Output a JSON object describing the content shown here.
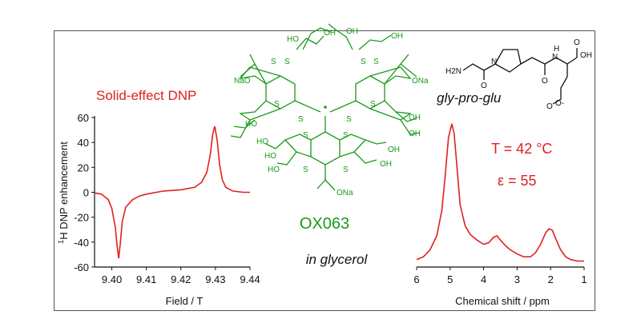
{
  "colors": {
    "spectrum": "#e02020",
    "molecule": "#1a9a1a",
    "peptide": "#111111"
  },
  "annotations": {
    "solid_effect": "Solid-effect DNP",
    "radical_name": "OX063",
    "solvent": "in glycerol",
    "peptide": "gly-pro-glu",
    "temperature": "T = 42 °C",
    "enhancement": "ε = 55",
    "labels_ox063": [
      "HO",
      "OH",
      "OH",
      "OH",
      "NaO",
      "ONa",
      "S",
      "HO",
      "OH",
      "OH",
      "ONa"
    ],
    "labels_peptide": [
      "H2N",
      "N",
      "H",
      "OH",
      "O",
      "O",
      "O",
      "O-"
    ]
  },
  "chart_data": [
    {
      "type": "line",
      "title": "",
      "xlabel": "Field / T",
      "ylabel": "1H DNP enhancement",
      "ylabel_sup": "1",
      "ylabel_rest": "H DNP enhancement",
      "xlim": [
        9.395,
        9.44
      ],
      "ylim": [
        -60,
        60
      ],
      "xticks": [
        9.4,
        9.41,
        9.42,
        9.43,
        9.44
      ],
      "xtick_labels": [
        "9.40",
        "9.41",
        "9.42",
        "9.43",
        "9.44"
      ],
      "yticks": [
        60,
        40,
        20,
        0,
        -20,
        -40,
        -60
      ],
      "ytick_labels": [
        "60",
        "40",
        "20",
        "0",
        "-20",
        "-40",
        "-60"
      ],
      "grid": false,
      "series": [
        {
          "x": [
            9.395,
            9.397,
            9.399,
            9.4,
            9.401,
            9.4015,
            9.402,
            9.4025,
            9.403,
            9.404,
            9.406,
            9.408,
            9.41,
            9.415,
            9.42,
            9.424,
            9.426,
            9.4275,
            9.4285,
            9.4292,
            9.4298,
            9.4305,
            9.4312,
            9.432,
            9.433,
            9.435,
            9.438,
            9.44
          ],
          "y": [
            -0.5,
            -1.5,
            -6,
            -13,
            -28,
            -42,
            -53,
            -40,
            -24,
            -12,
            -6,
            -3,
            -1.5,
            1,
            2,
            4,
            8,
            16,
            30,
            46,
            53,
            42,
            22,
            10,
            4,
            1,
            0,
            0
          ]
        }
      ]
    },
    {
      "type": "line",
      "title": "",
      "xlabel": "Chemical shift / ppm",
      "ylabel": "",
      "xlim": [
        6,
        1
      ],
      "x_reversed": true,
      "xticks": [
        6,
        5,
        4,
        3,
        2,
        1
      ],
      "xtick_labels": [
        "6",
        "5",
        "4",
        "3",
        "2",
        "1"
      ],
      "ylim": [
        0,
        1.05
      ],
      "grid": false,
      "series": [
        {
          "x": [
            6.0,
            5.8,
            5.6,
            5.4,
            5.25,
            5.15,
            5.05,
            4.95,
            4.88,
            4.8,
            4.7,
            4.55,
            4.4,
            4.2,
            4.0,
            3.85,
            3.7,
            3.6,
            3.5,
            3.35,
            3.2,
            3.0,
            2.8,
            2.6,
            2.45,
            2.3,
            2.15,
            2.05,
            1.95,
            1.85,
            1.7,
            1.55,
            1.4,
            1.2,
            1.0
          ],
          "y": [
            0.03,
            0.05,
            0.1,
            0.2,
            0.38,
            0.62,
            0.9,
            1.0,
            0.93,
            0.7,
            0.42,
            0.27,
            0.21,
            0.17,
            0.14,
            0.15,
            0.19,
            0.2,
            0.17,
            0.13,
            0.1,
            0.07,
            0.05,
            0.05,
            0.08,
            0.14,
            0.22,
            0.25,
            0.24,
            0.18,
            0.1,
            0.05,
            0.03,
            0.02,
            0.02
          ]
        }
      ]
    }
  ]
}
